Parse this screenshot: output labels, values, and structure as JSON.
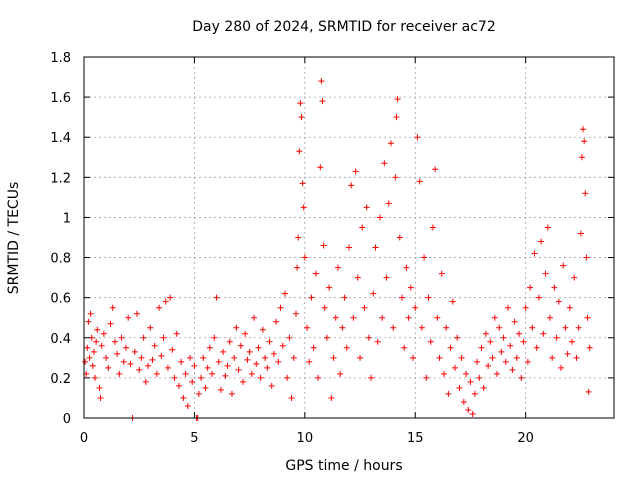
{
  "chart_data": {
    "type": "scatter",
    "title": "Day 280 of 2024, SRMTID for receiver ac72",
    "xlabel": "GPS time / hours",
    "ylabel": "SRMTID / TECUs",
    "xlim": [
      0,
      24
    ],
    "ylim": [
      0,
      1.8
    ],
    "xticks": [
      0,
      5,
      10,
      15,
      20
    ],
    "xtick_labels": [
      "0",
      "5",
      "10",
      "15",
      "20"
    ],
    "yticks": [
      0,
      0.2,
      0.4,
      0.6,
      0.8,
      1.0,
      1.2,
      1.4,
      1.6,
      1.8
    ],
    "ytick_labels": [
      "0",
      "0.2",
      "0.4",
      "0.6",
      "0.8",
      "1",
      "1.2",
      "1.4",
      "1.6",
      "1.8"
    ],
    "grid": true,
    "marker": "+",
    "color": "#ff0000",
    "series": [
      {
        "name": "SRMTID",
        "points": [
          [
            0.05,
            0.28
          ],
          [
            0.1,
            0.22
          ],
          [
            0.15,
            0.35
          ],
          [
            0.2,
            0.48
          ],
          [
            0.25,
            0.3
          ],
          [
            0.3,
            0.52
          ],
          [
            0.35,
            0.4
          ],
          [
            0.4,
            0.26
          ],
          [
            0.45,
            0.33
          ],
          [
            0.5,
            0.2
          ],
          [
            0.55,
            0.38
          ],
          [
            0.6,
            0.44
          ],
          [
            0.7,
            0.15
          ],
          [
            0.75,
            0.1
          ],
          [
            0.8,
            0.36
          ],
          [
            0.9,
            0.42
          ],
          [
            1.0,
            0.3
          ],
          [
            1.1,
            0.25
          ],
          [
            1.2,
            0.47
          ],
          [
            1.3,
            0.55
          ],
          [
            1.4,
            0.38
          ],
          [
            1.5,
            0.32
          ],
          [
            1.6,
            0.22
          ],
          [
            1.7,
            0.4
          ],
          [
            1.8,
            0.28
          ],
          [
            1.9,
            0.35
          ],
          [
            2.0,
            0.5
          ],
          [
            2.1,
            0.27
          ],
          [
            2.2,
            0.0
          ],
          [
            2.3,
            0.33
          ],
          [
            2.4,
            0.52
          ],
          [
            2.5,
            0.24
          ],
          [
            2.6,
            0.3
          ],
          [
            2.7,
            0.4
          ],
          [
            2.8,
            0.18
          ],
          [
            2.9,
            0.26
          ],
          [
            3.0,
            0.45
          ],
          [
            3.1,
            0.29
          ],
          [
            3.2,
            0.36
          ],
          [
            3.3,
            0.22
          ],
          [
            3.4,
            0.55
          ],
          [
            3.5,
            0.31
          ],
          [
            3.6,
            0.4
          ],
          [
            3.7,
            0.58
          ],
          [
            3.8,
            0.25
          ],
          [
            3.9,
            0.6
          ],
          [
            4.0,
            0.34
          ],
          [
            4.1,
            0.2
          ],
          [
            4.2,
            0.42
          ],
          [
            4.3,
            0.16
          ],
          [
            4.4,
            0.28
          ],
          [
            4.5,
            0.1
          ],
          [
            4.6,
            0.22
          ],
          [
            4.7,
            0.06
          ],
          [
            4.8,
            0.3
          ],
          [
            4.9,
            0.18
          ],
          [
            5.0,
            0.26
          ],
          [
            5.1,
            0.0
          ],
          [
            5.15,
            0.0
          ],
          [
            5.2,
            0.12
          ],
          [
            5.3,
            0.2
          ],
          [
            5.4,
            0.3
          ],
          [
            5.5,
            0.15
          ],
          [
            5.6,
            0.25
          ],
          [
            5.7,
            0.35
          ],
          [
            5.8,
            0.22
          ],
          [
            5.9,
            0.4
          ],
          [
            6.0,
            0.6
          ],
          [
            6.1,
            0.28
          ],
          [
            6.2,
            0.14
          ],
          [
            6.3,
            0.33
          ],
          [
            6.4,
            0.21
          ],
          [
            6.5,
            0.26
          ],
          [
            6.6,
            0.38
          ],
          [
            6.7,
            0.12
          ],
          [
            6.8,
            0.3
          ],
          [
            6.9,
            0.45
          ],
          [
            7.0,
            0.24
          ],
          [
            7.1,
            0.36
          ],
          [
            7.2,
            0.18
          ],
          [
            7.3,
            0.42
          ],
          [
            7.4,
            0.29
          ],
          [
            7.5,
            0.33
          ],
          [
            7.6,
            0.22
          ],
          [
            7.7,
            0.5
          ],
          [
            7.8,
            0.27
          ],
          [
            7.9,
            0.35
          ],
          [
            8.0,
            0.2
          ],
          [
            8.1,
            0.44
          ],
          [
            8.2,
            0.3
          ],
          [
            8.3,
            0.25
          ],
          [
            8.4,
            0.38
          ],
          [
            8.5,
            0.16
          ],
          [
            8.6,
            0.32
          ],
          [
            8.7,
            0.48
          ],
          [
            8.8,
            0.28
          ],
          [
            8.9,
            0.55
          ],
          [
            9.0,
            0.36
          ],
          [
            9.1,
            0.62
          ],
          [
            9.2,
            0.2
          ],
          [
            9.3,
            0.4
          ],
          [
            9.4,
            0.1
          ],
          [
            9.5,
            0.3
          ],
          [
            9.6,
            0.52
          ],
          [
            9.65,
            0.75
          ],
          [
            9.7,
            0.9
          ],
          [
            9.75,
            1.33
          ],
          [
            9.8,
            1.57
          ],
          [
            9.85,
            1.5
          ],
          [
            9.9,
            1.17
          ],
          [
            9.95,
            1.05
          ],
          [
            10.0,
            0.8
          ],
          [
            10.1,
            0.45
          ],
          [
            10.2,
            0.28
          ],
          [
            10.3,
            0.6
          ],
          [
            10.4,
            0.35
          ],
          [
            10.5,
            0.72
          ],
          [
            10.6,
            0.2
          ],
          [
            10.7,
            1.25
          ],
          [
            10.75,
            1.68
          ],
          [
            10.8,
            1.58
          ],
          [
            10.85,
            0.86
          ],
          [
            10.9,
            0.55
          ],
          [
            11.0,
            0.4
          ],
          [
            11.1,
            0.65
          ],
          [
            11.2,
            0.1
          ],
          [
            11.3,
            0.3
          ],
          [
            11.4,
            0.5
          ],
          [
            11.5,
            0.75
          ],
          [
            11.6,
            0.22
          ],
          [
            11.7,
            0.45
          ],
          [
            11.8,
            0.6
          ],
          [
            11.9,
            0.35
          ],
          [
            12.0,
            0.85
          ],
          [
            12.1,
            1.16
          ],
          [
            12.2,
            0.5
          ],
          [
            12.3,
            1.23
          ],
          [
            12.4,
            0.7
          ],
          [
            12.5,
            0.3
          ],
          [
            12.6,
            0.95
          ],
          [
            12.7,
            0.55
          ],
          [
            12.8,
            1.05
          ],
          [
            12.9,
            0.4
          ],
          [
            13.0,
            0.2
          ],
          [
            13.1,
            0.62
          ],
          [
            13.2,
            0.85
          ],
          [
            13.3,
            0.38
          ],
          [
            13.4,
            1.0
          ],
          [
            13.5,
            0.5
          ],
          [
            13.6,
            1.27
          ],
          [
            13.7,
            0.7
          ],
          [
            13.8,
            1.07
          ],
          [
            13.9,
            1.37
          ],
          [
            14.0,
            0.45
          ],
          [
            14.1,
            1.2
          ],
          [
            14.15,
            1.5
          ],
          [
            14.2,
            1.59
          ],
          [
            14.3,
            0.9
          ],
          [
            14.4,
            0.6
          ],
          [
            14.5,
            0.35
          ],
          [
            14.6,
            0.75
          ],
          [
            14.7,
            0.5
          ],
          [
            14.8,
            0.65
          ],
          [
            14.9,
            0.3
          ],
          [
            15.0,
            0.55
          ],
          [
            15.1,
            1.4
          ],
          [
            15.2,
            1.18
          ],
          [
            15.3,
            0.45
          ],
          [
            15.4,
            0.8
          ],
          [
            15.5,
            0.2
          ],
          [
            15.6,
            0.6
          ],
          [
            15.7,
            0.38
          ],
          [
            15.8,
            0.95
          ],
          [
            15.9,
            1.24
          ],
          [
            16.0,
            0.5
          ],
          [
            16.1,
            0.3
          ],
          [
            16.2,
            0.72
          ],
          [
            16.3,
            0.22
          ],
          [
            16.4,
            0.45
          ],
          [
            16.5,
            0.12
          ],
          [
            16.6,
            0.35
          ],
          [
            16.7,
            0.58
          ],
          [
            16.8,
            0.25
          ],
          [
            16.9,
            0.4
          ],
          [
            17.0,
            0.15
          ],
          [
            17.1,
            0.3
          ],
          [
            17.2,
            0.08
          ],
          [
            17.3,
            0.22
          ],
          [
            17.4,
            0.04
          ],
          [
            17.5,
            0.18
          ],
          [
            17.6,
            0.02
          ],
          [
            17.7,
            0.12
          ],
          [
            17.8,
            0.28
          ],
          [
            17.9,
            0.2
          ],
          [
            18.0,
            0.35
          ],
          [
            18.1,
            0.15
          ],
          [
            18.2,
            0.42
          ],
          [
            18.3,
            0.26
          ],
          [
            18.4,
            0.38
          ],
          [
            18.5,
            0.3
          ],
          [
            18.6,
            0.5
          ],
          [
            18.7,
            0.22
          ],
          [
            18.8,
            0.45
          ],
          [
            18.9,
            0.33
          ],
          [
            19.0,
            0.4
          ],
          [
            19.1,
            0.28
          ],
          [
            19.2,
            0.55
          ],
          [
            19.3,
            0.36
          ],
          [
            19.4,
            0.24
          ],
          [
            19.5,
            0.48
          ],
          [
            19.6,
            0.3
          ],
          [
            19.7,
            0.42
          ],
          [
            19.8,
            0.2
          ],
          [
            19.9,
            0.38
          ],
          [
            20.0,
            0.55
          ],
          [
            20.1,
            0.28
          ],
          [
            20.2,
            0.65
          ],
          [
            20.3,
            0.45
          ],
          [
            20.4,
            0.82
          ],
          [
            20.5,
            0.35
          ],
          [
            20.6,
            0.6
          ],
          [
            20.7,
            0.88
          ],
          [
            20.8,
            0.42
          ],
          [
            20.9,
            0.72
          ],
          [
            21.0,
            0.95
          ],
          [
            21.1,
            0.5
          ],
          [
            21.2,
            0.3
          ],
          [
            21.3,
            0.65
          ],
          [
            21.4,
            0.4
          ],
          [
            21.5,
            0.58
          ],
          [
            21.6,
            0.25
          ],
          [
            21.7,
            0.76
          ],
          [
            21.8,
            0.45
          ],
          [
            21.9,
            0.32
          ],
          [
            22.0,
            0.55
          ],
          [
            22.1,
            0.38
          ],
          [
            22.2,
            0.7
          ],
          [
            22.3,
            0.3
          ],
          [
            22.4,
            0.45
          ],
          [
            22.5,
            0.92
          ],
          [
            22.55,
            1.3
          ],
          [
            22.6,
            1.44
          ],
          [
            22.65,
            1.38
          ],
          [
            22.7,
            1.12
          ],
          [
            22.75,
            0.8
          ],
          [
            22.8,
            0.5
          ],
          [
            22.85,
            0.13
          ],
          [
            22.9,
            0.35
          ]
        ]
      }
    ]
  }
}
